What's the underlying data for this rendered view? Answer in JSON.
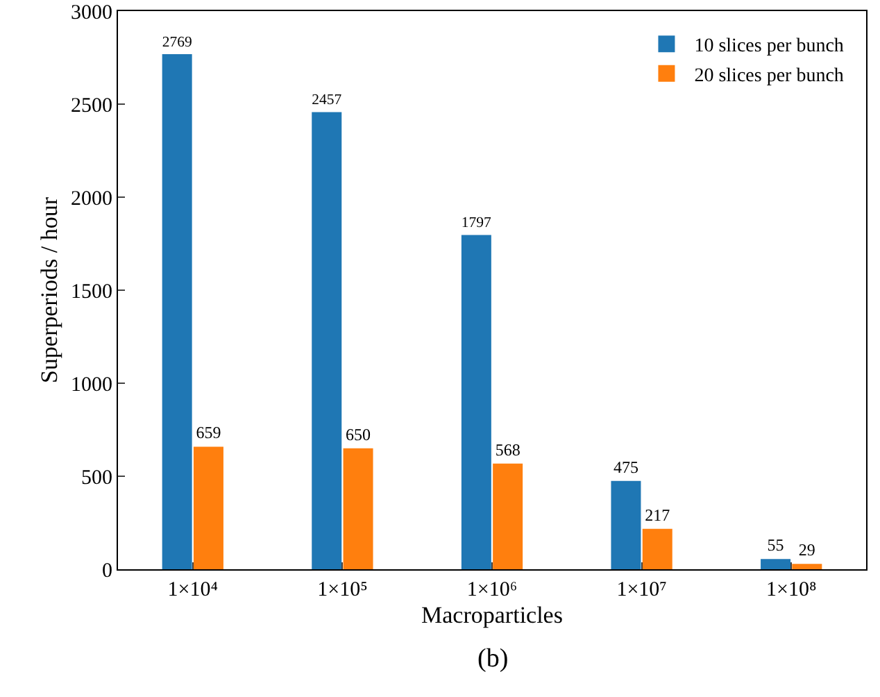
{
  "chart_data": {
    "type": "bar",
    "xlabel": "Macroparticles",
    "ylabel": "Superperiods / hour",
    "categories": [
      "1×10⁴",
      "1×10⁵",
      "1×10⁶",
      "1×10⁷",
      "1×10⁸"
    ],
    "series": [
      {
        "name": "10 slices per bunch",
        "color": "#1f77b4",
        "values": [
          2769,
          2457,
          1797,
          475,
          55
        ]
      },
      {
        "name": "20 slices per bunch",
        "color": "#ff7f0e",
        "values": [
          659,
          650,
          568,
          217,
          29
        ]
      }
    ],
    "ylim": [
      0,
      3000
    ],
    "yticks": [
      0,
      500,
      1000,
      1500,
      2000,
      2500,
      3000
    ],
    "grid": false,
    "legend": "top right",
    "data_labels": true,
    "annotations": [
      "(b)"
    ]
  }
}
